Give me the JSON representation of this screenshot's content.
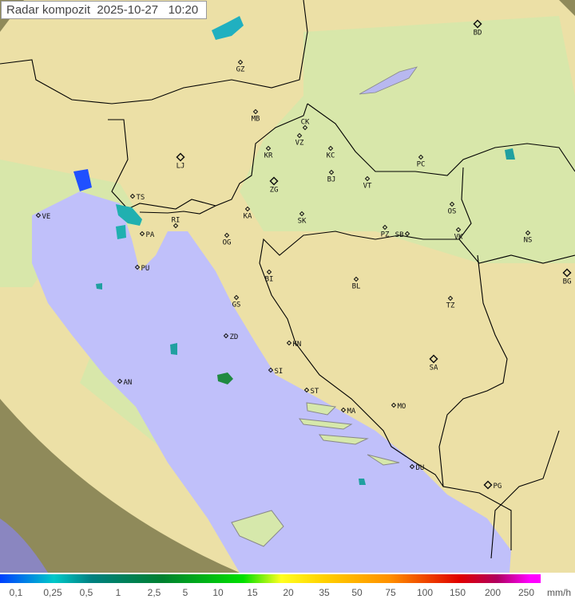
{
  "title": {
    "label": "Radar kompozit",
    "date": "2025-10-27",
    "time": "10:20"
  },
  "legend": {
    "unit": "mm/h",
    "ticks": [
      "0,1",
      "0,25",
      "0,5",
      "1",
      "2,5",
      "5",
      "10",
      "15",
      "20",
      "35",
      "50",
      "75",
      "100",
      "150",
      "200",
      "250"
    ]
  },
  "cities": [
    {
      "code": "BD",
      "capital": true
    },
    {
      "code": "GZ"
    },
    {
      "code": "MB"
    },
    {
      "code": "CK"
    },
    {
      "code": "VZ"
    },
    {
      "code": "KR"
    },
    {
      "code": "KC"
    },
    {
      "code": "LJ",
      "capital": true
    },
    {
      "code": "PC"
    },
    {
      "code": "BJ"
    },
    {
      "code": "VT"
    },
    {
      "code": "ZG",
      "capital": true
    },
    {
      "code": "TS"
    },
    {
      "code": "VE"
    },
    {
      "code": "OS"
    },
    {
      "code": "KA"
    },
    {
      "code": "SK"
    },
    {
      "code": "RI"
    },
    {
      "code": "PA"
    },
    {
      "code": "PZ"
    },
    {
      "code": "SB"
    },
    {
      "code": "VK"
    },
    {
      "code": "NS"
    },
    {
      "code": "OG"
    },
    {
      "code": "PU"
    },
    {
      "code": "BI"
    },
    {
      "code": "BL"
    },
    {
      "code": "BG",
      "capital": true
    },
    {
      "code": "GS"
    },
    {
      "code": "TZ"
    },
    {
      "code": "ZD"
    },
    {
      "code": "KN"
    },
    {
      "code": "SA",
      "capital": true
    },
    {
      "code": "SI"
    },
    {
      "code": "AN"
    },
    {
      "code": "ST"
    },
    {
      "code": "MA"
    },
    {
      "code": "MO"
    },
    {
      "code": "DU"
    },
    {
      "code": "PG",
      "capital": true
    }
  ],
  "colors": {
    "sea": "#c0c0fa",
    "land": "#eadc9e",
    "lowland": "#d2e6a8",
    "outside": "#a09860",
    "border": "#000000"
  }
}
